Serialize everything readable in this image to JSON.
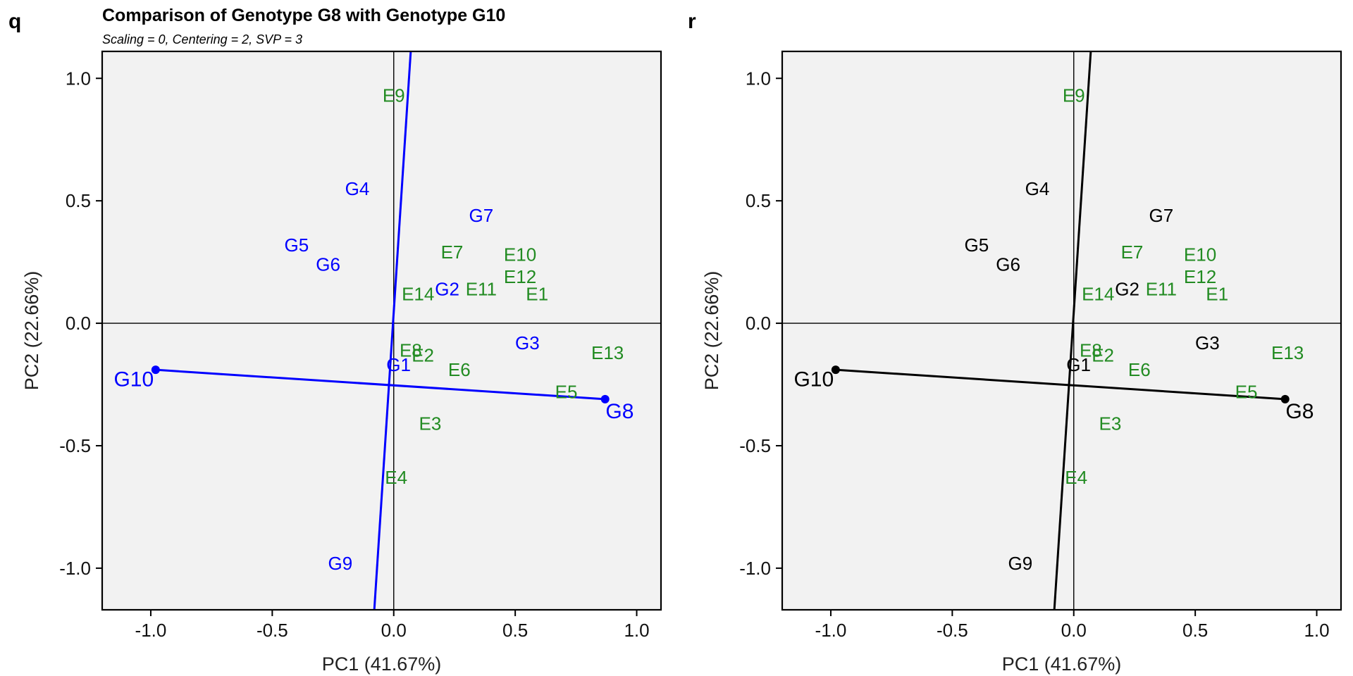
{
  "figure": {
    "title": "Comparison of Genotype G8 with Genotype G10",
    "subtitle": "Scaling = 0, Centering = 2, SVP = 3"
  },
  "colors": {
    "environment": "#228B22",
    "panel_q_genotype": "#0000FF",
    "panel_r_genotype": "#000000",
    "plot_background": "#F2F2F2"
  },
  "chart_data": [
    {
      "panel": "q",
      "type": "scatter",
      "xlabel": "PC1 (41.67%)",
      "ylabel": "PC2 (22.66%)",
      "xlim": [
        -1.2,
        1.1
      ],
      "ylim": [
        -1.17,
        1.11
      ],
      "xticks": [
        "-1.0",
        "-0.5",
        "0.0",
        "0.5",
        "1.0"
      ],
      "yticks": [
        "-1.0",
        "-0.5",
        "0.0",
        "0.5",
        "1.0"
      ],
      "grid": false,
      "genotype_color": "#0000FF",
      "genotypes": [
        {
          "label": "G1",
          "x": 0.02,
          "y": -0.17
        },
        {
          "label": "G2",
          "x": 0.22,
          "y": 0.14
        },
        {
          "label": "G3",
          "x": 0.55,
          "y": -0.08
        },
        {
          "label": "G4",
          "x": -0.15,
          "y": 0.55
        },
        {
          "label": "G5",
          "x": -0.4,
          "y": 0.32
        },
        {
          "label": "G6",
          "x": -0.27,
          "y": 0.24
        },
        {
          "label": "G7",
          "x": 0.36,
          "y": 0.44
        },
        {
          "label": "G8",
          "x": 0.93,
          "y": -0.36
        },
        {
          "label": "G9",
          "x": -0.22,
          "y": -0.98
        },
        {
          "label": "G10",
          "x": -1.07,
          "y": -0.23
        }
      ],
      "environments": [
        {
          "label": "E1",
          "x": 0.59,
          "y": 0.12
        },
        {
          "label": "E2",
          "x": 0.12,
          "y": -0.13
        },
        {
          "label": "E3",
          "x": 0.15,
          "y": -0.41
        },
        {
          "label": "E4",
          "x": 0.01,
          "y": -0.63
        },
        {
          "label": "E5",
          "x": 0.71,
          "y": -0.28
        },
        {
          "label": "E6",
          "x": 0.27,
          "y": -0.19
        },
        {
          "label": "E7",
          "x": 0.24,
          "y": 0.29
        },
        {
          "label": "E8",
          "x": 0.07,
          "y": -0.11
        },
        {
          "label": "E9",
          "x": 0.0,
          "y": 0.93
        },
        {
          "label": "E10",
          "x": 0.52,
          "y": 0.28
        },
        {
          "label": "E11",
          "x": 0.36,
          "y": 0.14
        },
        {
          "label": "E12",
          "x": 0.52,
          "y": 0.19
        },
        {
          "label": "E13",
          "x": 0.88,
          "y": -0.12
        },
        {
          "label": "E14",
          "x": 0.1,
          "y": 0.12
        }
      ],
      "comparison_line": {
        "from": [
          -0.98,
          -0.19
        ],
        "to": [
          0.87,
          -0.31
        ]
      },
      "perpendicular_line": {
        "from": [
          -0.08,
          -1.17
        ],
        "to": [
          0.07,
          1.11
        ]
      }
    },
    {
      "panel": "r",
      "type": "scatter",
      "xlabel": "PC1 (41.67%)",
      "ylabel": "PC2 (22.66%)",
      "xlim": [
        -1.2,
        1.1
      ],
      "ylim": [
        -1.17,
        1.11
      ],
      "xticks": [
        "-1.0",
        "-0.5",
        "0.0",
        "0.5",
        "1.0"
      ],
      "yticks": [
        "-1.0",
        "-0.5",
        "0.0",
        "0.5",
        "1.0"
      ],
      "grid": false,
      "genotype_color": "#000000",
      "genotypes": [
        {
          "label": "G1",
          "x": 0.02,
          "y": -0.17
        },
        {
          "label": "G2",
          "x": 0.22,
          "y": 0.14
        },
        {
          "label": "G3",
          "x": 0.55,
          "y": -0.08
        },
        {
          "label": "G4",
          "x": -0.15,
          "y": 0.55
        },
        {
          "label": "G5",
          "x": -0.4,
          "y": 0.32
        },
        {
          "label": "G6",
          "x": -0.27,
          "y": 0.24
        },
        {
          "label": "G7",
          "x": 0.36,
          "y": 0.44
        },
        {
          "label": "G8",
          "x": 0.93,
          "y": -0.36
        },
        {
          "label": "G9",
          "x": -0.22,
          "y": -0.98
        },
        {
          "label": "G10",
          "x": -1.07,
          "y": -0.23
        }
      ],
      "environments": [
        {
          "label": "E1",
          "x": 0.59,
          "y": 0.12
        },
        {
          "label": "E2",
          "x": 0.12,
          "y": -0.13
        },
        {
          "label": "E3",
          "x": 0.15,
          "y": -0.41
        },
        {
          "label": "E4",
          "x": 0.01,
          "y": -0.63
        },
        {
          "label": "E5",
          "x": 0.71,
          "y": -0.28
        },
        {
          "label": "E6",
          "x": 0.27,
          "y": -0.19
        },
        {
          "label": "E7",
          "x": 0.24,
          "y": 0.29
        },
        {
          "label": "E8",
          "x": 0.07,
          "y": -0.11
        },
        {
          "label": "E9",
          "x": 0.0,
          "y": 0.93
        },
        {
          "label": "E10",
          "x": 0.52,
          "y": 0.28
        },
        {
          "label": "E11",
          "x": 0.36,
          "y": 0.14
        },
        {
          "label": "E12",
          "x": 0.52,
          "y": 0.19
        },
        {
          "label": "E13",
          "x": 0.88,
          "y": -0.12
        },
        {
          "label": "E14",
          "x": 0.1,
          "y": 0.12
        }
      ],
      "comparison_line": {
        "from": [
          -0.98,
          -0.19
        ],
        "to": [
          0.87,
          -0.31
        ]
      },
      "perpendicular_line": {
        "from": [
          -0.08,
          -1.17
        ],
        "to": [
          0.07,
          1.11
        ]
      }
    }
  ]
}
